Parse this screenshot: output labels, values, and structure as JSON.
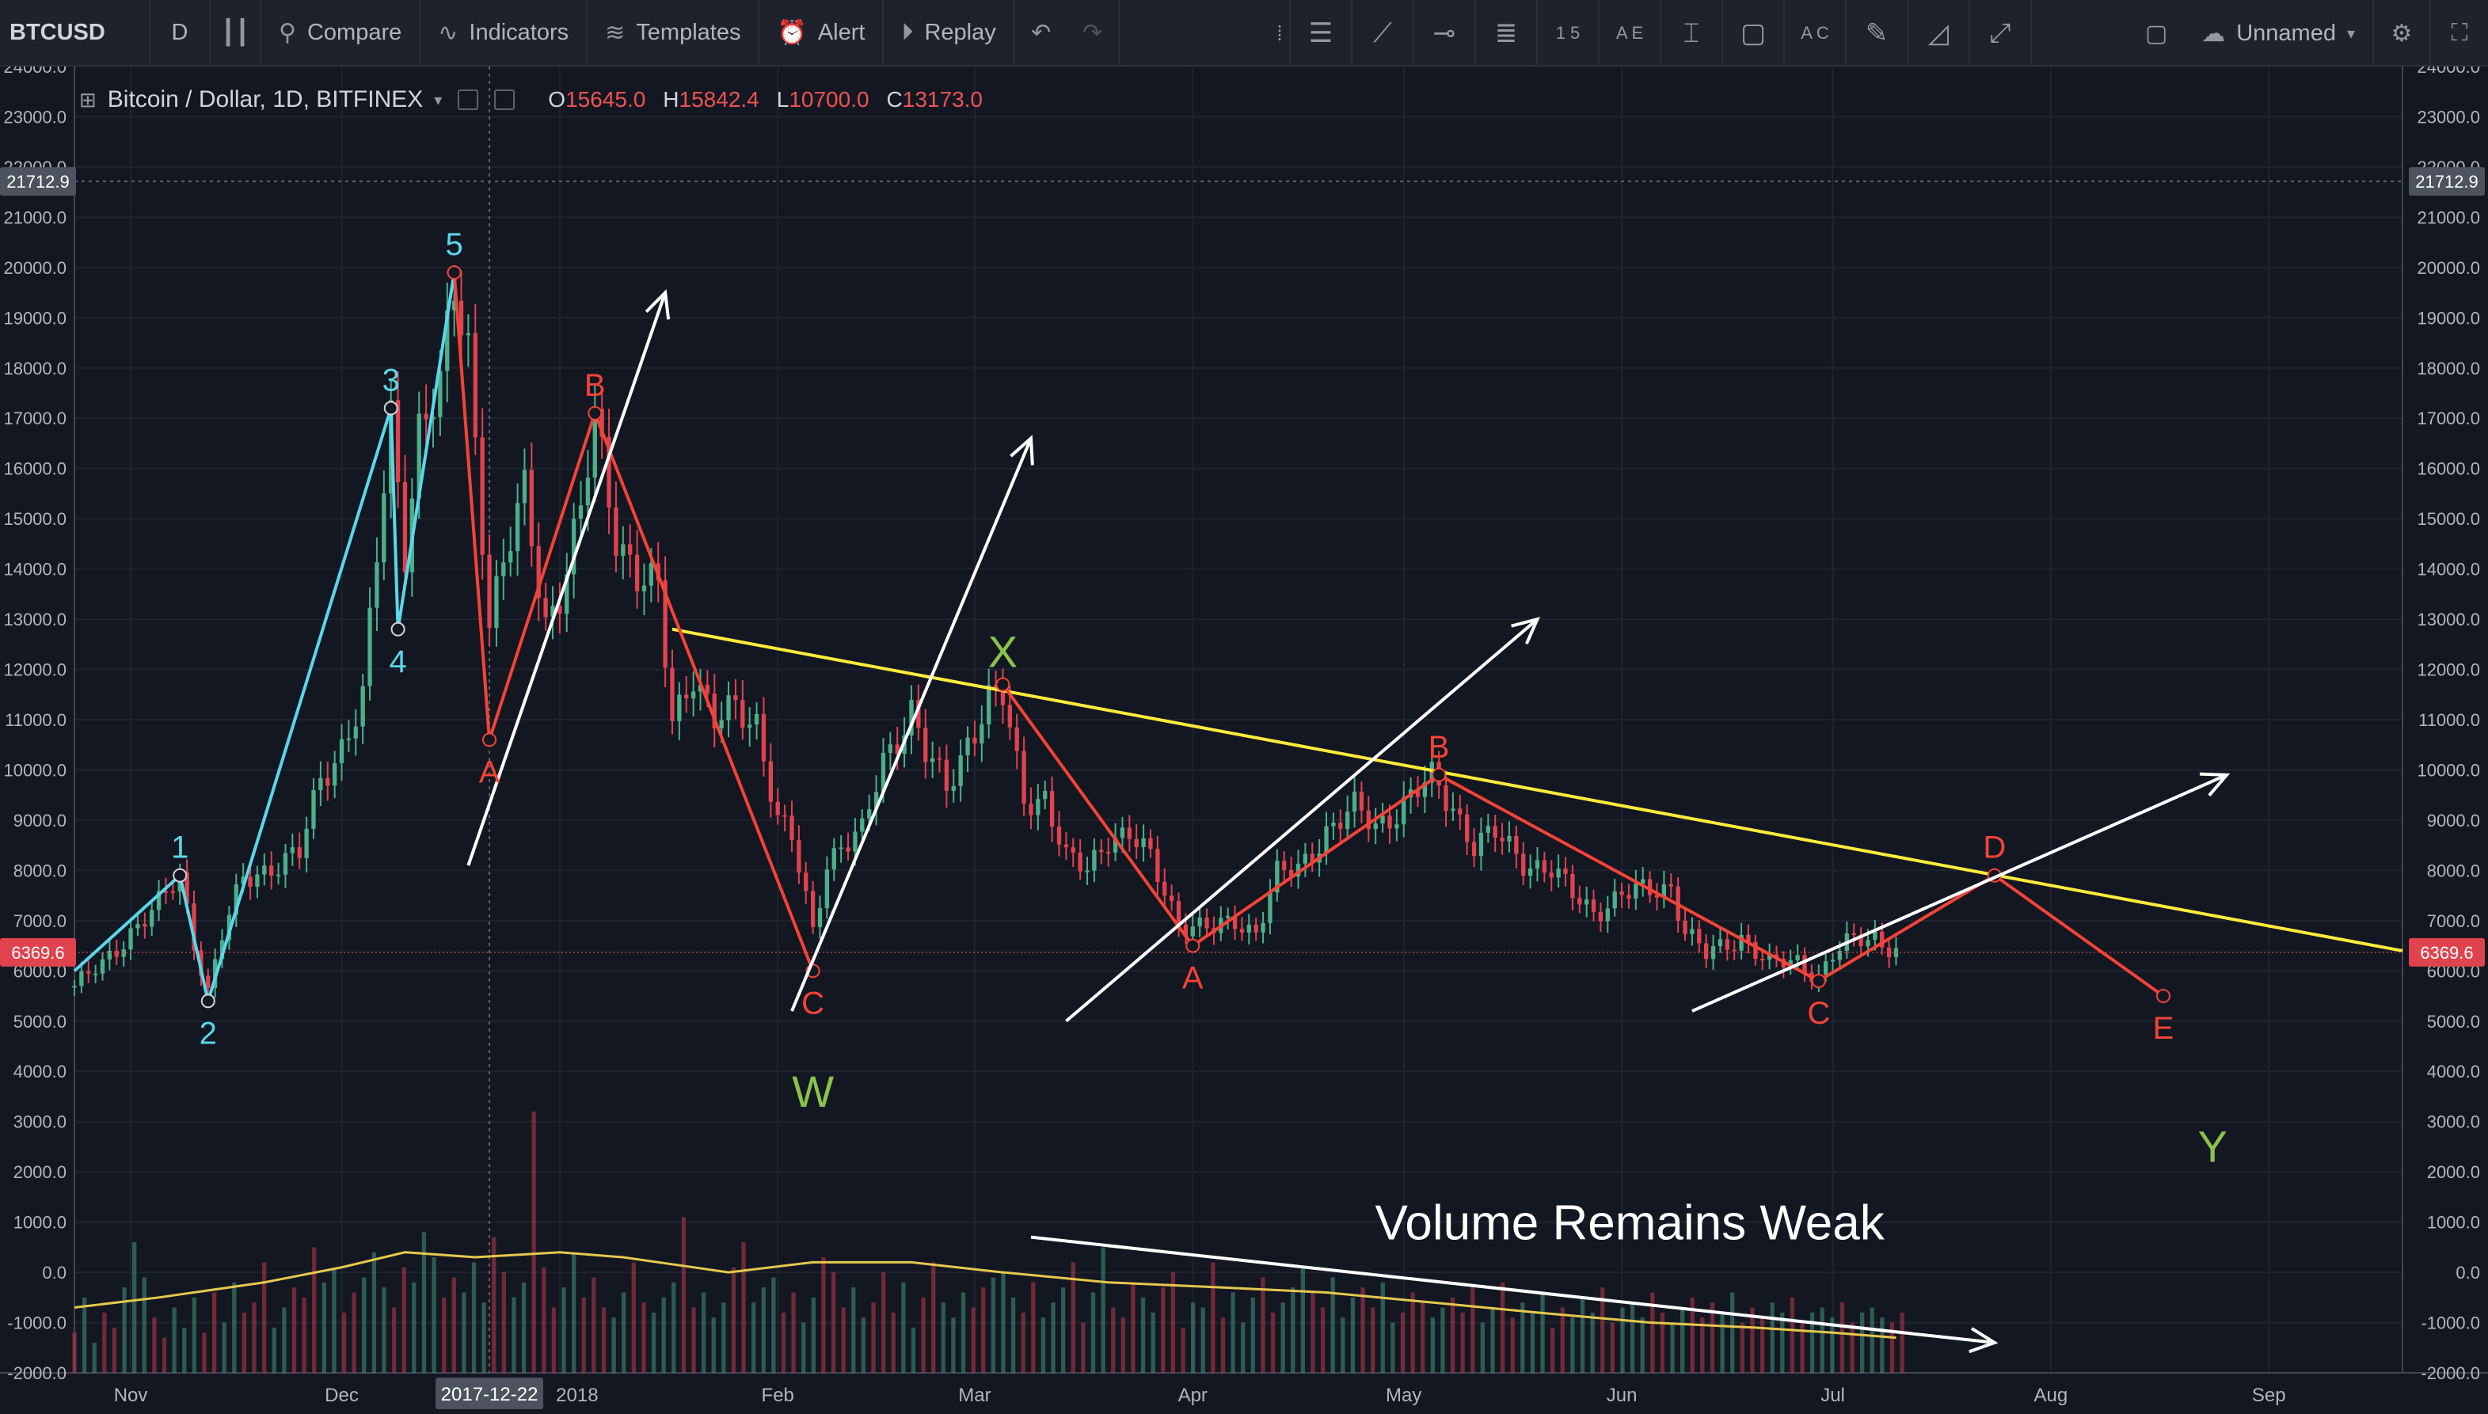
{
  "toolbar": {
    "symbol": "BTCUSD",
    "interval": "D",
    "compare": "Compare",
    "indicators": "Indicators",
    "templates": "Templates",
    "alert": "Alert",
    "replay": "Replay",
    "layout_name": "Unnamed",
    "tool_icons": [
      "cursor-icon",
      "horizontal-lines-icon",
      "trend-line-icon",
      "horizontal-ray-icon",
      "fib-retracement-icon",
      "elliott-wave-icon",
      "abcde-pattern-icon",
      "measure-icon",
      "rectangle-icon",
      "abc-pattern-icon",
      "brush-icon",
      "triangle-icon",
      "path-icon"
    ],
    "tool_wave_labels": [
      "1 5",
      "A E",
      "A C"
    ]
  },
  "legend": {
    "title": "Bitcoin / Dollar, 1D, BITFINEX",
    "open_label": "O",
    "open": "15645.0",
    "high_label": "H",
    "high": "15842.4",
    "low_label": "L",
    "low": "10700.0",
    "close_label": "C",
    "close": "13173.0"
  },
  "colors": {
    "background": "#131722",
    "grid": "#1f2330",
    "up": "#4caf8a",
    "down": "#e0434e",
    "wave_impulse": "#5ad7ea",
    "wave_corrective": "#f44336",
    "wave_big": "#8bc34a",
    "trendline": "#ffeb3b",
    "arrows": "#ffffff",
    "volume_ma": "#e6c84b"
  },
  "chart_data": {
    "type": "candlestick",
    "y_ticks": [
      "24000.0",
      "23000.0",
      "22000.0",
      "21000.0",
      "20000.0",
      "19000.0",
      "18000.0",
      "17000.0",
      "16000.0",
      "15000.0",
      "14000.0",
      "13000.0",
      "12000.0",
      "11000.0",
      "10000.0",
      "9000.0",
      "8000.0",
      "7000.0",
      "6000.0",
      "5000.0",
      "4000.0",
      "3000.0",
      "2000.0",
      "1000.0",
      "0.0",
      "-1000.0",
      "-2000.0"
    ],
    "ylim": [
      -2000,
      24000
    ],
    "x_ticks": [
      {
        "label": "Nov",
        "date": "2017-11-01"
      },
      {
        "label": "Dec",
        "date": "2017-12-01"
      },
      {
        "label": "2018",
        "date": "2018-01-01"
      },
      {
        "label": "Feb",
        "date": "2018-02-01"
      },
      {
        "label": "Mar",
        "date": "2018-03-01"
      },
      {
        "label": "Apr",
        "date": "2018-04-01"
      },
      {
        "label": "May",
        "date": "2018-05-01"
      },
      {
        "label": "Jun",
        "date": "2018-06-01"
      },
      {
        "label": "Jul",
        "date": "2018-07-01"
      },
      {
        "label": "Aug",
        "date": "2018-08-01"
      },
      {
        "label": "Sep",
        "date": "2018-09-01"
      }
    ],
    "xlim": [
      "2017-10-24",
      "2018-09-20"
    ],
    "crosshair": {
      "price_label": "21712.9",
      "price": 21712.9,
      "date_label": "2017-12-22",
      "date": "2017-12-22"
    },
    "last_price": {
      "label": "6369.6",
      "price": 6369.6
    },
    "price_path": [
      [
        "2017-10-24",
        5700
      ],
      [
        "2017-10-28",
        6100
      ],
      [
        "2017-11-01",
        6800
      ],
      [
        "2017-11-05",
        7300
      ],
      [
        "2017-11-08",
        7900
      ],
      [
        "2017-11-10",
        6600
      ],
      [
        "2017-11-12",
        5600
      ],
      [
        "2017-11-14",
        6700
      ],
      [
        "2017-11-17",
        7800
      ],
      [
        "2017-11-21",
        8100
      ],
      [
        "2017-11-25",
        8300
      ],
      [
        "2017-11-28",
        9800
      ],
      [
        "2017-12-01",
        10500
      ],
      [
        "2017-12-04",
        11400
      ],
      [
        "2017-12-07",
        15600
      ],
      [
        "2017-12-08",
        17000
      ],
      [
        "2017-12-10",
        14500
      ],
      [
        "2017-12-12",
        16800
      ],
      [
        "2017-12-15",
        17500
      ],
      [
        "2017-12-17",
        19500
      ],
      [
        "2017-12-19",
        18500
      ],
      [
        "2017-12-22",
        13000
      ],
      [
        "2017-12-24",
        14000
      ],
      [
        "2017-12-27",
        15500
      ],
      [
        "2017-12-30",
        13000
      ],
      [
        "2018-01-01",
        13500
      ],
      [
        "2018-01-04",
        15000
      ],
      [
        "2018-01-06",
        17000
      ],
      [
        "2018-01-09",
        14800
      ],
      [
        "2018-01-12",
        13800
      ],
      [
        "2018-01-15",
        13500
      ],
      [
        "2018-01-17",
        11000
      ],
      [
        "2018-01-20",
        12000
      ],
      [
        "2018-01-23",
        10900
      ],
      [
        "2018-01-26",
        11200
      ],
      [
        "2018-01-29",
        11000
      ],
      [
        "2018-02-01",
        9000
      ],
      [
        "2018-02-03",
        8600
      ],
      [
        "2018-02-06",
        6800
      ],
      [
        "2018-02-08",
        8200
      ],
      [
        "2018-02-10",
        8500
      ],
      [
        "2018-02-13",
        8700
      ],
      [
        "2018-02-16",
        10200
      ],
      [
        "2018-02-20",
        11200
      ],
      [
        "2018-02-22",
        10300
      ],
      [
        "2018-02-25",
        9600
      ],
      [
        "2018-02-28",
        10600
      ],
      [
        "2018-03-03",
        11400
      ],
      [
        "2018-03-05",
        11400
      ],
      [
        "2018-03-08",
        9400
      ],
      [
        "2018-03-11",
        9500
      ],
      [
        "2018-03-14",
        8200
      ],
      [
        "2018-03-17",
        8000
      ],
      [
        "2018-03-20",
        8700
      ],
      [
        "2018-03-23",
        8700
      ],
      [
        "2018-03-26",
        8200
      ],
      [
        "2018-03-30",
        7000
      ],
      [
        "2018-04-01",
        6900
      ],
      [
        "2018-04-04",
        6800
      ],
      [
        "2018-04-07",
        7000
      ],
      [
        "2018-04-10",
        6800
      ],
      [
        "2018-04-13",
        7900
      ],
      [
        "2018-04-16",
        8000
      ],
      [
        "2018-04-20",
        8800
      ],
      [
        "2018-04-24",
        9200
      ],
      [
        "2018-04-27",
        8900
      ],
      [
        "2018-04-30",
        9200
      ],
      [
        "2018-05-05",
        9800
      ],
      [
        "2018-05-08",
        9300
      ],
      [
        "2018-05-11",
        8500
      ],
      [
        "2018-05-14",
        8700
      ],
      [
        "2018-05-18",
        8200
      ],
      [
        "2018-05-22",
        8000
      ],
      [
        "2018-05-25",
        7500
      ],
      [
        "2018-05-28",
        7200
      ],
      [
        "2018-06-01",
        7500
      ],
      [
        "2018-06-05",
        7600
      ],
      [
        "2018-06-08",
        7700
      ],
      [
        "2018-06-10",
        6800
      ],
      [
        "2018-06-13",
        6300
      ],
      [
        "2018-06-18",
        6700
      ],
      [
        "2018-06-22",
        6100
      ],
      [
        "2018-06-26",
        6200
      ],
      [
        "2018-06-29",
        5900
      ],
      [
        "2018-07-01",
        6300
      ],
      [
        "2018-07-04",
        6600
      ],
      [
        "2018-07-07",
        6700
      ],
      [
        "2018-07-10",
        6400
      ]
    ],
    "volume": [
      800,
      1500,
      600,
      1200,
      900,
      1700,
      2600,
      1900,
      1100,
      700,
      1300,
      900,
      1500,
      800,
      1600,
      1000,
      1800,
      1200,
      1400,
      2200,
      900,
      1300,
      1700,
      1500,
      2500,
      1800,
      2100,
      1200,
      1600,
      1900,
      2400,
      1700,
      1300,
      2100,
      1800,
      2800,
      2300,
      1500,
      1900,
      1600,
      2200,
      1400,
      2700,
      2000,
      1500,
      1800,
      5200,
      2100,
      1300,
      1700,
      2400,
      1500,
      1900,
      1300,
      1100,
      1600,
      2200,
      1400,
      1200,
      1500,
      1800,
      3100,
      1300,
      1600,
      1100,
      1400,
      2100,
      2600,
      1400,
      1700,
      1900,
      1200,
      1600,
      1000,
      1500,
      2300,
      2000,
      1300,
      1700,
      1100,
      1400,
      2000,
      1200,
      1800,
      900,
      1500,
      2200,
      1400,
      1100,
      1600,
      1300,
      1700,
      1900,
      2000,
      1500,
      1200,
      1800,
      1100,
      1400,
      1700,
      2200,
      1000,
      1600,
      2500,
      1300,
      1100,
      1800,
      1500,
      1200,
      1700,
      2000,
      900,
      1400,
      1300,
      2200,
      1100,
      1600,
      1000,
      1500,
      1900,
      1200,
      1400,
      1700,
      2100,
      1600,
      1300,
      1900,
      1100,
      1500,
      1700,
      1300,
      1800,
      1000,
      1200,
      1600,
      1400,
      1100,
      1300,
      1500,
      1200,
      1700,
      1000,
      1300,
      1800,
      1100,
      1400,
      1200,
      1600,
      900,
      1300,
      1100,
      1500,
      1200,
      1700,
      1000,
      1300,
      1400,
      1100,
      1600,
      1200,
      1000,
      1300,
      1500,
      1100,
      1400,
      1200,
      1600,
      1000,
      1300,
      1100,
      1400,
      1200,
      1500,
      1000,
      1200,
      1300,
      1100,
      1400,
      1000,
      1200,
      1300,
      1100,
      1000,
      1200
    ],
    "volume_ma_path": [
      [
        "2017-10-24",
        -700
      ],
      [
        "2017-11-05",
        -500
      ],
      [
        "2017-11-20",
        -200
      ],
      [
        "2017-12-01",
        100
      ],
      [
        "2017-12-10",
        400
      ],
      [
        "2017-12-20",
        300
      ],
      [
        "2018-01-01",
        400
      ],
      [
        "2018-01-10",
        300
      ],
      [
        "2018-01-25",
        0
      ],
      [
        "2018-02-06",
        200
      ],
      [
        "2018-02-20",
        200
      ],
      [
        "2018-03-05",
        0
      ],
      [
        "2018-03-20",
        -200
      ],
      [
        "2018-04-05",
        -300
      ],
      [
        "2018-04-20",
        -400
      ],
      [
        "2018-05-05",
        -600
      ],
      [
        "2018-05-20",
        -800
      ],
      [
        "2018-06-05",
        -1000
      ],
      [
        "2018-06-20",
        -1100
      ],
      [
        "2018-07-01",
        -1200
      ],
      [
        "2018-07-10",
        -1300
      ]
    ],
    "wave_labels": [
      {
        "text": "1",
        "date": "2017-11-08",
        "price": 7900,
        "color": "wave_impulse",
        "pos": "above"
      },
      {
        "text": "2",
        "date": "2017-11-12",
        "price": 5400,
        "color": "wave_impulse",
        "pos": "below"
      },
      {
        "text": "3",
        "date": "2017-12-08",
        "price": 17200,
        "color": "wave_impulse",
        "pos": "above"
      },
      {
        "text": "4",
        "date": "2017-12-09",
        "price": 12800,
        "color": "wave_impulse",
        "pos": "below"
      },
      {
        "text": "5",
        "date": "2017-12-17",
        "price": 19900,
        "color": "wave_impulse",
        "pos": "above"
      },
      {
        "text": "A",
        "date": "2017-12-22",
        "price": 10600,
        "color": "wave_corrective",
        "pos": "below"
      },
      {
        "text": "B",
        "date": "2018-01-06",
        "price": 17100,
        "color": "wave_corrective",
        "pos": "above"
      },
      {
        "text": "C",
        "date": "2018-02-06",
        "price": 6000,
        "color": "wave_corrective",
        "pos": "below"
      },
      {
        "text": "W",
        "date": "2018-02-06",
        "price": 4400,
        "color": "wave_big",
        "pos": "below"
      },
      {
        "text": "X",
        "date": "2018-03-05",
        "price": 11700,
        "color": "wave_big",
        "pos": "above"
      },
      {
        "text": "A",
        "date": "2018-04-01",
        "price": 6500,
        "color": "wave_corrective",
        "pos": "below"
      },
      {
        "text": "B",
        "date": "2018-05-06",
        "price": 9900,
        "color": "wave_corrective",
        "pos": "above"
      },
      {
        "text": "C",
        "date": "2018-06-29",
        "price": 5800,
        "color": "wave_corrective",
        "pos": "below"
      },
      {
        "text": "D",
        "date": "2018-07-24",
        "price": 7900,
        "color": "wave_corrective",
        "pos": "above"
      },
      {
        "text": "E",
        "date": "2018-08-17",
        "price": 5500,
        "color": "wave_corrective",
        "pos": "below"
      },
      {
        "text": "Y",
        "date": "2018-08-24",
        "price": 3300,
        "color": "wave_big",
        "pos": "below"
      }
    ],
    "impulse_path": [
      [
        "2017-10-24",
        6000
      ],
      [
        "2017-11-08",
        7900
      ],
      [
        "2017-11-12",
        5400
      ],
      [
        "2017-12-08",
        17200
      ],
      [
        "2017-12-09",
        12800
      ],
      [
        "2017-12-17",
        19900
      ]
    ],
    "corrective_paths": [
      [
        [
          "2017-12-17",
          19900
        ],
        [
          "2017-12-22",
          10600
        ],
        [
          "2018-01-06",
          17100
        ],
        [
          "2018-02-06",
          6000
        ]
      ],
      [
        [
          "2018-03-05",
          11700
        ],
        [
          "2018-04-01",
          6500
        ],
        [
          "2018-05-06",
          9900
        ],
        [
          "2018-06-29",
          5800
        ],
        [
          "2018-07-24",
          7900
        ],
        [
          "2018-08-17",
          5500
        ]
      ]
    ],
    "trendline": [
      [
        "2018-01-17",
        12800
      ],
      [
        "2018-09-20",
        6400
      ]
    ],
    "arrows": [
      {
        "from": [
          "2017-12-19",
          8100
        ],
        "to": [
          "2018-01-16",
          19500
        ]
      },
      {
        "from": [
          "2018-02-03",
          5200
        ],
        "to": [
          "2018-03-09",
          16600
        ]
      },
      {
        "from": [
          "2018-03-14",
          5000
        ],
        "to": [
          "2018-05-20",
          13000
        ]
      },
      {
        "from": [
          "2018-06-11",
          5200
        ],
        "to": [
          "2018-08-26",
          9900
        ]
      },
      {
        "from": [
          "2018-03-09",
          700
        ],
        "to": [
          "2018-07-24",
          -1400
        ]
      }
    ],
    "annotation": {
      "text": "Volume Remains Weak",
      "date": "2018-06-01",
      "price": 1000
    }
  }
}
